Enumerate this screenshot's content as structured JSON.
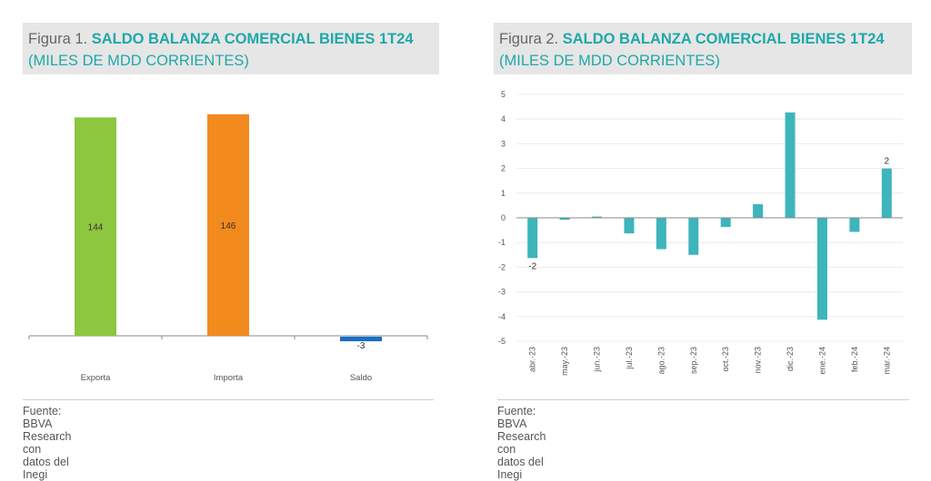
{
  "figure1": {
    "prefix": "Figura 1.",
    "title": "SALDO BALANZA COMERCIAL BIENES 1T24",
    "subtitle": "(MILES DE MDD CORRIENTES)",
    "source": "Fuente: BBVA Research con datos del Inegi"
  },
  "figure2": {
    "prefix": "Figura 2.",
    "title": "SALDO BALANZA COMERCIAL BIENES 1T24",
    "subtitle": "(MILES DE MDD CORRIENTES)",
    "source": "Fuente: BBVA Research con datos del Inegi"
  },
  "chart_data": [
    {
      "type": "bar",
      "title": "SALDO BALANZA COMERCIAL BIENES 1T24",
      "subtitle": "(MILES DE MDD CORRIENTES)",
      "categories": [
        "Exporta",
        "Importa",
        "Saldo"
      ],
      "values": [
        144,
        146,
        -3
      ],
      "data_labels": [
        "144",
        "146",
        "-3"
      ],
      "colors": [
        "#8dc63f",
        "#f28a1e",
        "#1a6fc4"
      ],
      "ylim": [
        -10,
        150
      ],
      "grid": false,
      "xlabel": "",
      "ylabel": ""
    },
    {
      "type": "bar",
      "title": "SALDO BALANZA COMERCIAL BIENES 1T24",
      "subtitle": "(MILES DE MDD CORRIENTES)",
      "categories": [
        "abr.-23",
        "may.-23",
        "jun.-23",
        "jul.-23",
        "ago.-23",
        "sep.-23",
        "oct.-23",
        "nov.-23",
        "dic.-23",
        "ene.-24",
        "feb.-24",
        "mar.-24"
      ],
      "values": [
        -1.63,
        -0.08,
        0.05,
        -0.63,
        -1.27,
        -1.5,
        -0.37,
        0.55,
        4.27,
        -4.13,
        -0.57,
        2.0
      ],
      "data_labels": [
        {
          "index": 0,
          "text": "-2"
        },
        {
          "index": 11,
          "text": "2"
        }
      ],
      "yticks": [
        "5",
        "4",
        "3",
        "2",
        "1",
        "0",
        "-1",
        "-2",
        "-3",
        "-4",
        "-5"
      ],
      "ylim": [
        -5,
        5
      ],
      "color": "#3db5bb",
      "grid": true,
      "xlabel": "",
      "ylabel": ""
    }
  ]
}
